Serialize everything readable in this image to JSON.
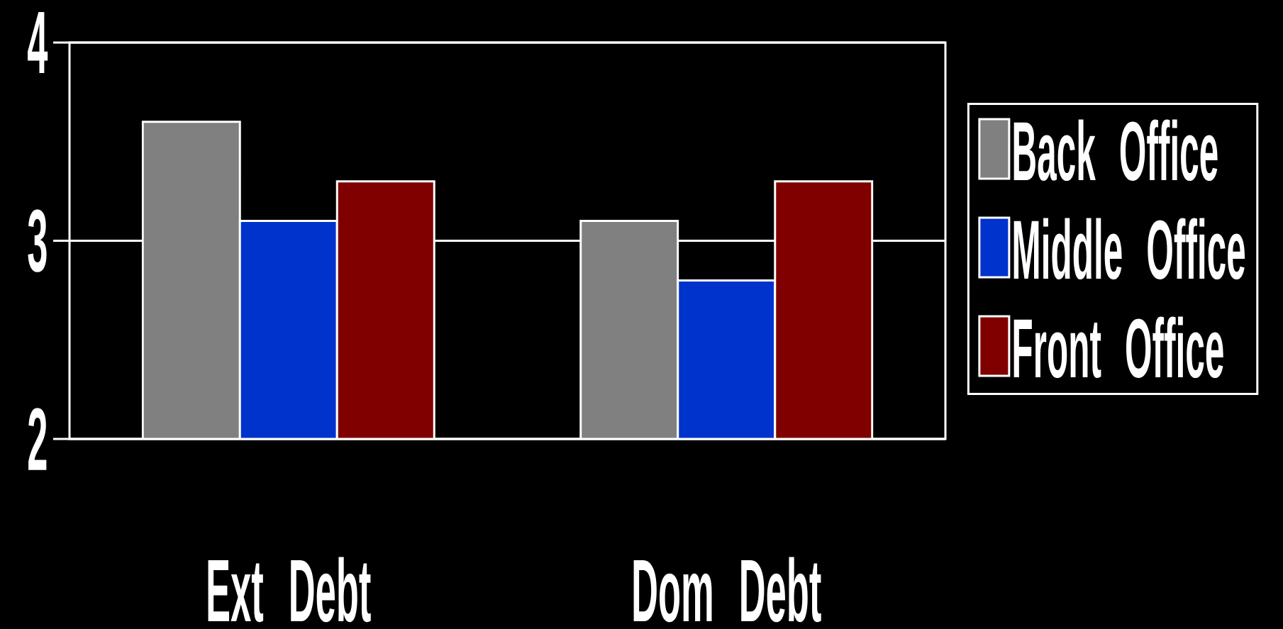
{
  "chart_data": {
    "type": "bar",
    "categories": [
      "Ext Debt",
      "Dom Debt"
    ],
    "series": [
      {
        "name": "Back Office",
        "color": "#808080",
        "values": [
          3.6,
          3.1
        ]
      },
      {
        "name": "Middle Office",
        "color": "#0033cc",
        "values": [
          3.1,
          2.8
        ]
      },
      {
        "name": "Front Office",
        "color": "#800000",
        "values": [
          3.3,
          3.3
        ]
      }
    ],
    "ylim": [
      2,
      4
    ],
    "yticks": [
      2,
      3,
      4
    ],
    "grid": "y",
    "legend": "right"
  }
}
